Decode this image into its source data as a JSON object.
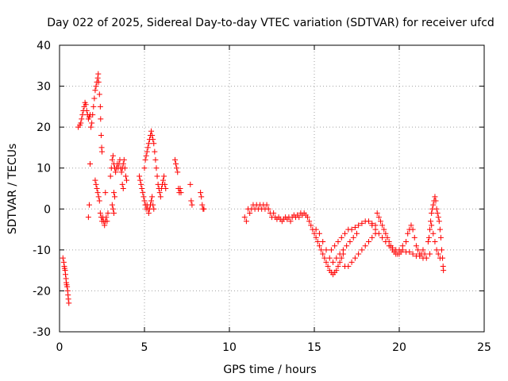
{
  "chart_data": {
    "type": "scatter",
    "title": "Day 022 of 2025, Sidereal Day-to-day VTEC variation (SDTVAR) for receiver ufcd",
    "xlabel": "GPS time / hours",
    "ylabel": "SDTVAR / TECUs",
    "xlim": [
      0,
      25
    ],
    "ylim": [
      -30,
      40
    ],
    "x_ticks": [
      0,
      5,
      10,
      15,
      20,
      25
    ],
    "x_tick_labels": [
      "0",
      "5",
      "10",
      "15",
      "20",
      "25"
    ],
    "y_ticks": [
      -30,
      -20,
      -10,
      0,
      10,
      20,
      30,
      40
    ],
    "y_tick_labels": [
      "-30",
      "-20",
      "-10",
      "0",
      "10",
      "20",
      "30",
      "40"
    ],
    "grid": true,
    "marker": "+",
    "marker_color": "#ff0000",
    "series": [
      {
        "name": "SDTVAR",
        "points": [
          [
            0.2,
            -12
          ],
          [
            0.25,
            -13
          ],
          [
            0.28,
            -14
          ],
          [
            0.3,
            -14.5
          ],
          [
            0.33,
            -15
          ],
          [
            0.35,
            -16
          ],
          [
            0.38,
            -17
          ],
          [
            0.4,
            -18
          ],
          [
            0.42,
            -18.5
          ],
          [
            0.45,
            -19
          ],
          [
            0.48,
            -20
          ],
          [
            0.5,
            -21
          ],
          [
            0.52,
            -22
          ],
          [
            0.55,
            -23
          ],
          [
            1.1,
            20
          ],
          [
            1.2,
            20.5
          ],
          [
            1.25,
            21
          ],
          [
            1.3,
            22
          ],
          [
            1.35,
            23
          ],
          [
            1.4,
            24
          ],
          [
            1.45,
            25
          ],
          [
            1.5,
            26
          ],
          [
            1.55,
            25.5
          ],
          [
            1.6,
            24
          ],
          [
            1.65,
            23
          ],
          [
            1.7,
            22
          ],
          [
            1.75,
            22.5
          ],
          [
            1.8,
            23
          ],
          [
            1.7,
            -2
          ],
          [
            1.75,
            1
          ],
          [
            1.8,
            11
          ],
          [
            1.85,
            20
          ],
          [
            1.9,
            21
          ],
          [
            1.95,
            23
          ],
          [
            2.0,
            25
          ],
          [
            2.05,
            27
          ],
          [
            2.1,
            29
          ],
          [
            2.15,
            30
          ],
          [
            2.2,
            31
          ],
          [
            2.25,
            32
          ],
          [
            2.28,
            33
          ],
          [
            2.3,
            31
          ],
          [
            2.35,
            28
          ],
          [
            2.4,
            25
          ],
          [
            2.42,
            22
          ],
          [
            2.45,
            18
          ],
          [
            2.48,
            15
          ],
          [
            2.5,
            14
          ],
          [
            2.1,
            7
          ],
          [
            2.15,
            6
          ],
          [
            2.2,
            5
          ],
          [
            2.25,
            4
          ],
          [
            2.3,
            3
          ],
          [
            2.35,
            2
          ],
          [
            2.4,
            -1
          ],
          [
            2.45,
            -2
          ],
          [
            2.5,
            -3
          ],
          [
            2.55,
            -2
          ],
          [
            2.6,
            -3
          ],
          [
            2.65,
            -4
          ],
          [
            2.7,
            -3
          ],
          [
            2.75,
            -2
          ],
          [
            2.8,
            -3
          ],
          [
            2.85,
            -1
          ],
          [
            2.7,
            4
          ],
          [
            3.0,
            8
          ],
          [
            3.05,
            10
          ],
          [
            3.1,
            12
          ],
          [
            3.15,
            13
          ],
          [
            3.2,
            11
          ],
          [
            3.25,
            10
          ],
          [
            3.3,
            9
          ],
          [
            3.35,
            10
          ],
          [
            3.4,
            11
          ],
          [
            3.45,
            10
          ],
          [
            3.5,
            11
          ],
          [
            3.55,
            12
          ],
          [
            3.6,
            10
          ],
          [
            3.65,
            9
          ],
          [
            3.7,
            10
          ],
          [
            3.75,
            11
          ],
          [
            3.8,
            12
          ],
          [
            3.85,
            10
          ],
          [
            3.9,
            8
          ],
          [
            3.95,
            7
          ],
          [
            3.7,
            6
          ],
          [
            3.75,
            5
          ],
          [
            3.2,
            4
          ],
          [
            3.25,
            3
          ],
          [
            3.1,
            1
          ],
          [
            3.15,
            0
          ],
          [
            3.2,
            -1
          ],
          [
            4.7,
            8
          ],
          [
            4.75,
            7
          ],
          [
            4.8,
            6
          ],
          [
            4.85,
            5
          ],
          [
            4.9,
            4
          ],
          [
            4.95,
            3
          ],
          [
            5.0,
            2
          ],
          [
            5.05,
            1
          ],
          [
            5.1,
            0
          ],
          [
            5.15,
            1
          ],
          [
            5.2,
            0
          ],
          [
            5.25,
            -1
          ],
          [
            5.3,
            0
          ],
          [
            5.35,
            1
          ],
          [
            5.4,
            2
          ],
          [
            5.45,
            3
          ],
          [
            5.5,
            1
          ],
          [
            5.55,
            0
          ],
          [
            5.0,
            10
          ],
          [
            5.05,
            12
          ],
          [
            5.1,
            13
          ],
          [
            5.15,
            14
          ],
          [
            5.2,
            15
          ],
          [
            5.25,
            16
          ],
          [
            5.3,
            17
          ],
          [
            5.35,
            18
          ],
          [
            5.4,
            19
          ],
          [
            5.45,
            18
          ],
          [
            5.5,
            17
          ],
          [
            5.55,
            16
          ],
          [
            5.6,
            14
          ],
          [
            5.65,
            12
          ],
          [
            5.7,
            10
          ],
          [
            5.75,
            8
          ],
          [
            5.8,
            6
          ],
          [
            5.85,
            5
          ],
          [
            5.9,
            4
          ],
          [
            5.95,
            3
          ],
          [
            6.0,
            5
          ],
          [
            6.05,
            6
          ],
          [
            6.1,
            7
          ],
          [
            6.15,
            8
          ],
          [
            6.2,
            6
          ],
          [
            6.25,
            5
          ],
          [
            6.8,
            12
          ],
          [
            6.85,
            11
          ],
          [
            6.9,
            10
          ],
          [
            6.95,
            9
          ],
          [
            7.0,
            5
          ],
          [
            7.05,
            4
          ],
          [
            7.1,
            5
          ],
          [
            7.15,
            4
          ],
          [
            7.7,
            6
          ],
          [
            7.75,
            2
          ],
          [
            7.8,
            1
          ],
          [
            8.3,
            4
          ],
          [
            8.35,
            3
          ],
          [
            8.4,
            1
          ],
          [
            8.45,
            0
          ],
          [
            8.5,
            0
          ],
          [
            10.9,
            -2
          ],
          [
            11.0,
            -3
          ],
          [
            11.1,
            0
          ],
          [
            11.2,
            -1
          ],
          [
            11.3,
            0
          ],
          [
            11.4,
            1
          ],
          [
            11.5,
            0
          ],
          [
            11.6,
            1
          ],
          [
            11.7,
            0
          ],
          [
            11.8,
            1
          ],
          [
            11.9,
            0
          ],
          [
            12.0,
            1
          ],
          [
            12.1,
            0
          ],
          [
            12.2,
            1
          ],
          [
            12.3,
            0
          ],
          [
            12.4,
            -1
          ],
          [
            12.5,
            -2
          ],
          [
            12.6,
            -1
          ],
          [
            12.7,
            -2
          ],
          [
            12.8,
            -2.5
          ],
          [
            12.9,
            -2
          ],
          [
            13.0,
            -2.5
          ],
          [
            13.1,
            -3
          ],
          [
            13.2,
            -2.5
          ],
          [
            13.3,
            -2
          ],
          [
            13.4,
            -2.5
          ],
          [
            13.5,
            -2
          ],
          [
            13.6,
            -3
          ],
          [
            13.7,
            -2
          ],
          [
            13.8,
            -1.5
          ],
          [
            13.9,
            -2
          ],
          [
            14.0,
            -1.5
          ],
          [
            14.1,
            -2
          ],
          [
            14.2,
            -1
          ],
          [
            14.3,
            -1.5
          ],
          [
            14.4,
            -1
          ],
          [
            14.5,
            -1.5
          ],
          [
            14.6,
            -2
          ],
          [
            14.7,
            -3
          ],
          [
            14.8,
            -4
          ],
          [
            14.9,
            -5
          ],
          [
            15.0,
            -6
          ],
          [
            15.1,
            -7
          ],
          [
            15.2,
            -8
          ],
          [
            15.3,
            -9
          ],
          [
            15.4,
            -10
          ],
          [
            15.5,
            -11
          ],
          [
            15.6,
            -12
          ],
          [
            15.7,
            -13
          ],
          [
            15.8,
            -14
          ],
          [
            15.9,
            -15
          ],
          [
            16.0,
            -15.5
          ],
          [
            16.1,
            -16
          ],
          [
            16.2,
            -15.5
          ],
          [
            16.3,
            -15
          ],
          [
            16.4,
            -14
          ],
          [
            16.5,
            -13
          ],
          [
            16.6,
            -12
          ],
          [
            16.7,
            -11
          ],
          [
            15.1,
            -5
          ],
          [
            15.3,
            -6
          ],
          [
            15.5,
            -8
          ],
          [
            15.7,
            -10
          ],
          [
            15.9,
            -12
          ],
          [
            16.1,
            -13
          ],
          [
            16.3,
            -12
          ],
          [
            16.5,
            -11
          ],
          [
            16.7,
            -10
          ],
          [
            16.9,
            -9
          ],
          [
            17.1,
            -8
          ],
          [
            17.3,
            -7
          ],
          [
            17.5,
            -6
          ],
          [
            16.0,
            -10
          ],
          [
            16.2,
            -9
          ],
          [
            16.4,
            -8
          ],
          [
            16.6,
            -7
          ],
          [
            16.8,
            -6
          ],
          [
            17.0,
            -5
          ],
          [
            17.2,
            -5
          ],
          [
            17.4,
            -4.5
          ],
          [
            17.6,
            -4
          ],
          [
            17.8,
            -3.5
          ],
          [
            18.0,
            -3
          ],
          [
            18.2,
            -3
          ],
          [
            18.4,
            -3.5
          ],
          [
            18.6,
            -4
          ],
          [
            16.8,
            -14
          ],
          [
            17.0,
            -14
          ],
          [
            17.2,
            -13
          ],
          [
            17.4,
            -12
          ],
          [
            17.6,
            -11
          ],
          [
            17.8,
            -10
          ],
          [
            18.0,
            -9
          ],
          [
            18.2,
            -8
          ],
          [
            18.4,
            -7
          ],
          [
            18.6,
            -6
          ],
          [
            18.7,
            -1
          ],
          [
            18.8,
            -2
          ],
          [
            18.9,
            -3
          ],
          [
            19.0,
            -4
          ],
          [
            19.1,
            -5
          ],
          [
            19.2,
            -6
          ],
          [
            19.3,
            -7
          ],
          [
            19.4,
            -8
          ],
          [
            19.5,
            -9
          ],
          [
            19.6,
            -10
          ],
          [
            19.7,
            -10.5
          ],
          [
            19.8,
            -11
          ],
          [
            19.9,
            -11
          ],
          [
            20.0,
            -11
          ],
          [
            20.1,
            -10.5
          ],
          [
            18.4,
            -4
          ],
          [
            18.6,
            -5
          ],
          [
            18.8,
            -6
          ],
          [
            19.0,
            -7
          ],
          [
            19.2,
            -8
          ],
          [
            19.4,
            -9
          ],
          [
            19.6,
            -9.5
          ],
          [
            19.8,
            -10
          ],
          [
            20.0,
            -10
          ],
          [
            20.2,
            -10
          ],
          [
            20.4,
            -10.5
          ],
          [
            20.6,
            -10.5
          ],
          [
            20.8,
            -11
          ],
          [
            21.0,
            -11.5
          ],
          [
            21.2,
            -11.5
          ],
          [
            21.4,
            -12
          ],
          [
            21.6,
            -12
          ],
          [
            21.8,
            -11
          ],
          [
            20.2,
            -9
          ],
          [
            20.4,
            -8
          ],
          [
            20.5,
            -6
          ],
          [
            20.6,
            -5
          ],
          [
            20.7,
            -4
          ],
          [
            20.8,
            -5
          ],
          [
            20.9,
            -7
          ],
          [
            21.0,
            -9
          ],
          [
            21.1,
            -10
          ],
          [
            21.2,
            -11
          ],
          [
            21.3,
            -11
          ],
          [
            21.4,
            -10
          ],
          [
            21.5,
            -11
          ],
          [
            21.7,
            -8
          ],
          [
            21.75,
            -7
          ],
          [
            21.8,
            -5
          ],
          [
            21.85,
            -3
          ],
          [
            21.9,
            -1
          ],
          [
            21.95,
            0
          ],
          [
            22.0,
            1
          ],
          [
            22.05,
            2
          ],
          [
            22.1,
            3
          ],
          [
            22.15,
            2
          ],
          [
            22.2,
            0
          ],
          [
            22.25,
            -1
          ],
          [
            22.3,
            -2
          ],
          [
            22.35,
            -3
          ],
          [
            22.4,
            -5
          ],
          [
            22.45,
            -7
          ],
          [
            22.5,
            -10
          ],
          [
            22.55,
            -12
          ],
          [
            22.58,
            -14
          ],
          [
            22.6,
            -15
          ],
          [
            21.9,
            -4
          ],
          [
            22.0,
            -6
          ],
          [
            22.1,
            -8
          ],
          [
            22.2,
            -10
          ],
          [
            22.3,
            -11
          ],
          [
            22.4,
            -12
          ]
        ]
      }
    ]
  }
}
